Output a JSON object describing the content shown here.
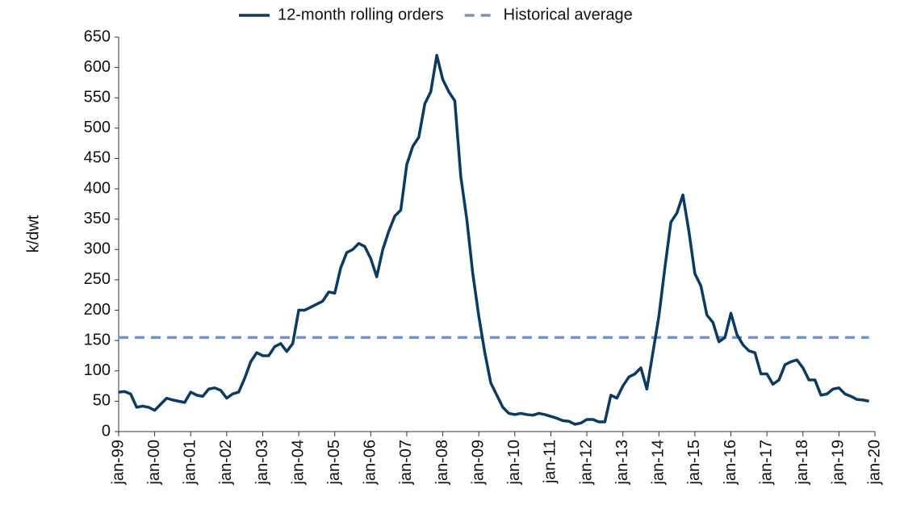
{
  "chart_data": {
    "type": "line",
    "ylabel": "k/dwt",
    "categories": [
      "jan-99",
      null,
      null,
      null,
      null,
      null,
      "jan-00",
      null,
      null,
      null,
      null,
      null,
      "jan-01",
      null,
      null,
      null,
      null,
      null,
      "jan-02",
      null,
      null,
      null,
      null,
      null,
      "jan-03",
      null,
      null,
      null,
      null,
      null,
      "jan-04",
      null,
      null,
      null,
      null,
      null,
      "jan-05",
      null,
      null,
      null,
      null,
      null,
      "jan-06",
      null,
      null,
      null,
      null,
      null,
      "jan-07",
      null,
      null,
      null,
      null,
      null,
      "jan-08",
      null,
      null,
      null,
      null,
      null,
      "jan-09",
      null,
      null,
      null,
      null,
      null,
      "jan-10",
      null,
      null,
      null,
      null,
      null,
      "jan-11",
      null,
      null,
      null,
      null,
      null,
      "jan-12",
      null,
      null,
      null,
      null,
      null,
      "jan-13",
      null,
      null,
      null,
      null,
      null,
      "jan-14",
      null,
      null,
      null,
      null,
      null,
      "jan-15",
      null,
      null,
      null,
      null,
      null,
      "jan-16",
      null,
      null,
      null,
      null,
      null,
      "jan-17",
      null,
      null,
      null,
      null,
      null,
      "jan-18",
      null,
      null,
      null,
      null,
      null,
      "jan-19",
      null,
      null,
      null,
      null,
      null,
      "jan-20"
    ],
    "series": [
      {
        "name": "12-month rolling orders",
        "color": "#0b3a63",
        "values": [
          65,
          66,
          62,
          40,
          42,
          40,
          35,
          45,
          55,
          52,
          50,
          48,
          65,
          60,
          58,
          70,
          72,
          68,
          55,
          62,
          65,
          88,
          115,
          130,
          125,
          125,
          140,
          145,
          132,
          145,
          200,
          200,
          205,
          210,
          215,
          230,
          228,
          270,
          295,
          300,
          310,
          305,
          285,
          255,
          300,
          330,
          355,
          365,
          440,
          470,
          485,
          540,
          560,
          620,
          580,
          560,
          545,
          420,
          350,
          260,
          190,
          130,
          80,
          60,
          40,
          30,
          28,
          30,
          28,
          27,
          30,
          28,
          25,
          22,
          18,
          17,
          12,
          14,
          20,
          20,
          16,
          16,
          60,
          55,
          75,
          90,
          95,
          105,
          70,
          130,
          190,
          270,
          345,
          360,
          390,
          330,
          260,
          240,
          192,
          180,
          148,
          155,
          195,
          160,
          143,
          133,
          130,
          95,
          95,
          78,
          85,
          110,
          115,
          118,
          105,
          85,
          85,
          60,
          62,
          70,
          72,
          62,
          58,
          53,
          52,
          50,
          null
        ]
      },
      {
        "name": "Historical average",
        "color": "#7592c0",
        "dashed": true,
        "value": 155
      }
    ],
    "ylim": [
      0,
      650
    ],
    "yticks": [
      0,
      50,
      100,
      150,
      200,
      250,
      300,
      350,
      400,
      450,
      500,
      550,
      600,
      650
    ]
  }
}
